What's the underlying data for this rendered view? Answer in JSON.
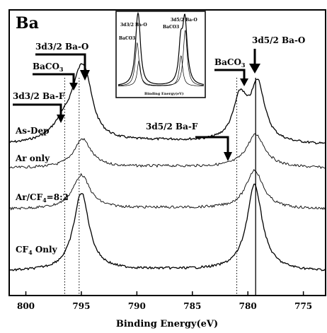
{
  "chart_data": {
    "type": "line",
    "panel_label": "Ba",
    "xlabel": "Binding Energy(eV)",
    "xlim": [
      801.5,
      773
    ],
    "x_ticks": [
      800,
      795,
      790,
      785,
      780,
      775
    ],
    "x_tick_labels": [
      "800",
      "795",
      "790",
      "785",
      "780",
      "775"
    ],
    "series": [
      {
        "name": "As-Dep",
        "baseline": 0.0
      },
      {
        "name": "Ar only",
        "baseline": 0.0
      },
      {
        "name": "Ar/CF4=8:2",
        "baseline": 0.0
      },
      {
        "name": "CF4 Only",
        "baseline": 0.0
      }
    ],
    "peaks": {
      "As-Dep": [
        {
          "center": 796.5,
          "height": 0.22,
          "width": 1.6
        },
        {
          "center": 795.2,
          "height": 0.55,
          "width": 1.1
        },
        {
          "center": 794.6,
          "height": 0.5,
          "width": 0.9
        },
        {
          "center": 780.7,
          "height": 0.55,
          "width": 0.9
        },
        {
          "center": 779.1,
          "height": 0.72,
          "width": 0.9
        }
      ],
      "Ar only": [
        {
          "center": 794.9,
          "height": 0.65,
          "width": 1.1
        },
        {
          "center": 779.3,
          "height": 0.75,
          "width": 1.2
        }
      ],
      "Ar/CF4=8:2": [
        {
          "center": 795.0,
          "height": 0.7,
          "width": 1.1
        },
        {
          "center": 779.4,
          "height": 0.8,
          "width": 1.1
        }
      ],
      "CF4 Only": [
        {
          "center": 795.0,
          "height": 1.0,
          "width": 1.0
        },
        {
          "center": 779.4,
          "height": 1.1,
          "width": 1.0
        }
      ]
    },
    "reference_lines": [
      {
        "x": 796.5,
        "style": "dotted"
      },
      {
        "x": 795.2,
        "style": "dotted"
      },
      {
        "x": 781.0,
        "style": "dotted"
      },
      {
        "x": 779.3,
        "style": "solid"
      }
    ],
    "annotations": [
      {
        "text": "3d3/2 Ba-O",
        "target_x": 795.2
      },
      {
        "text": "BaCO3",
        "target_x": 794.6
      },
      {
        "text": "3d3/2 Ba-F",
        "target_x": 796.5
      },
      {
        "text": "3d5/2 Ba-O",
        "target_x": 779.2
      },
      {
        "text": "BaCO3",
        "target_x": 780.6
      },
      {
        "text": "3d5/2 Ba-F",
        "target_x": 781.0
      }
    ],
    "inset": {
      "xlabel": "Binding Energy(eV)",
      "labels": [
        "3d3/2 Ba-O",
        "BaCO3",
        "3d5/2 Ba-O",
        "BaCO3"
      ]
    }
  }
}
